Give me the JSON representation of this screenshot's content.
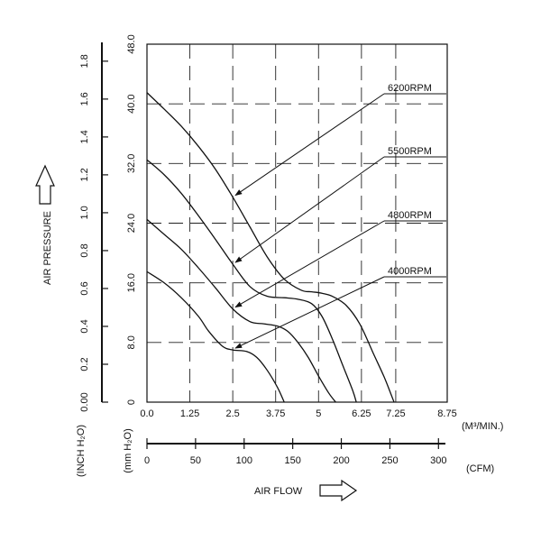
{
  "chart_data": {
    "type": "line",
    "xlabel": "AIR FLOW",
    "ylabel": "AIR PRESSURE",
    "x_unit_top": "(M³/MIN.)",
    "x_unit_bottom": "(CFM)",
    "y_unit_right": "(mm H₂O)",
    "y_unit_left": "(INCH H₂O)",
    "xlim": [
      0,
      8.75
    ],
    "ylim": [
      0,
      48
    ],
    "x_ticks": [
      "0.0",
      "1.25",
      "2.5",
      "3.75",
      "5",
      "6.25",
      "7.25",
      "8.75"
    ],
    "y_ticks": [
      "0",
      "8.0",
      "16.0",
      "24.0",
      "32.0",
      "40.0",
      "48.0"
    ],
    "cfm_ticks": [
      "0",
      "50",
      "100",
      "150",
      "200",
      "250",
      "300"
    ],
    "inch_ticks": [
      "0.00",
      "0.2",
      "0.4",
      "0.6",
      "0.8",
      "1.0",
      "1.2",
      "1.4",
      "1.6",
      "1.8"
    ],
    "grid": true,
    "series": [
      {
        "name": "6200RPM",
        "x": [
          0,
          0.5,
          1.0,
          1.5,
          2.0,
          2.5,
          3.0,
          3.5,
          4.0,
          4.5,
          4.8,
          5.1,
          5.4,
          5.8,
          6.2,
          6.6,
          6.9,
          7.1,
          7.2
        ],
        "y": [
          41.5,
          39.3,
          37.0,
          34.3,
          31.2,
          27.5,
          23.5,
          19.5,
          16.5,
          15.0,
          14.8,
          14.6,
          14.2,
          13.0,
          10.5,
          6.5,
          3.5,
          1.2,
          0
        ]
      },
      {
        "name": "5500RPM",
        "x": [
          0,
          0.5,
          1.0,
          1.5,
          2.0,
          2.5,
          3.0,
          3.5,
          4.0,
          4.4,
          4.8,
          5.1,
          5.4,
          5.7,
          6.0,
          6.1
        ],
        "y": [
          32.5,
          30.5,
          28.0,
          25.0,
          21.8,
          18.5,
          15.5,
          14.2,
          14.0,
          13.8,
          13.2,
          11.5,
          8.5,
          5.0,
          1.5,
          0
        ]
      },
      {
        "name": "4800RPM",
        "x": [
          0,
          0.5,
          1.0,
          1.5,
          2.0,
          2.5,
          3.0,
          3.4,
          3.8,
          4.1,
          4.4,
          4.7,
          5.0,
          5.3,
          5.5
        ],
        "y": [
          24.5,
          22.5,
          20.5,
          18.0,
          15.3,
          12.5,
          10.8,
          10.5,
          10.2,
          9.5,
          8.0,
          6.0,
          3.5,
          1.2,
          0
        ]
      },
      {
        "name": "4000RPM",
        "x": [
          0,
          0.5,
          1.0,
          1.5,
          1.8,
          2.2,
          2.5,
          2.9,
          3.2,
          3.5,
          3.8,
          4.0
        ],
        "y": [
          17.5,
          16.0,
          14.0,
          11.5,
          9.5,
          7.5,
          7.0,
          6.8,
          6.0,
          4.3,
          2.0,
          0
        ]
      }
    ],
    "annotations": [
      {
        "text": "6200RPM",
        "target_x": 2.5,
        "target_y": 27.5
      },
      {
        "text": "5500RPM",
        "target_x": 2.5,
        "target_y": 18.5
      },
      {
        "text": "4800RPM",
        "target_x": 2.5,
        "target_y": 12.5
      },
      {
        "text": "4000RPM",
        "target_x": 2.5,
        "target_y": 7.0
      }
    ]
  }
}
